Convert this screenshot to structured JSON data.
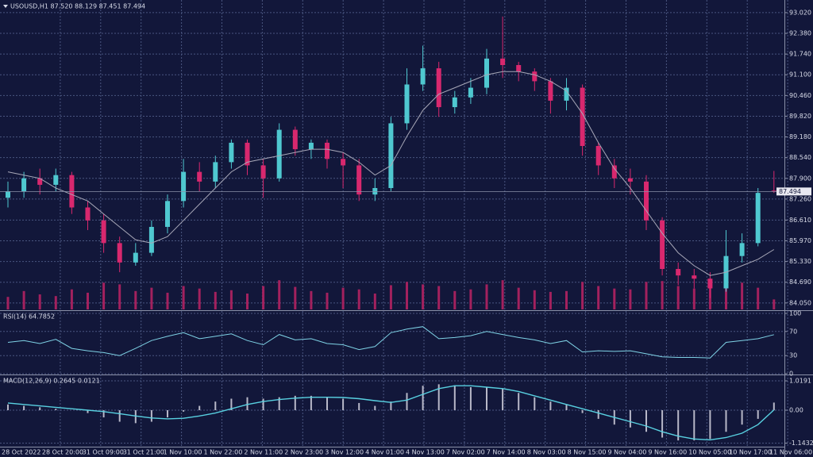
{
  "chart_data": [
    {
      "type": "candlestick",
      "title": "USOUSD,H1  87.520 88.129 87.451 87.494",
      "up_color": "#4fc8d0",
      "down_color": "#d8286e",
      "volume_color": "#a3215e",
      "ma_color": "#a8a8b8",
      "ylim": [
        83.85,
        93.41
      ],
      "yticks": [
        {
          "value": 93.02,
          "label": "93.020"
        },
        {
          "value": 92.38,
          "label": "92.380"
        },
        {
          "value": 91.74,
          "label": "91.740"
        },
        {
          "value": 91.1,
          "label": "91.100"
        },
        {
          "value": 90.46,
          "label": "90.460"
        },
        {
          "value": 89.82,
          "label": "89.820"
        },
        {
          "value": 89.18,
          "label": "89.180"
        },
        {
          "value": 88.54,
          "label": "88.540"
        },
        {
          "value": 87.9,
          "label": "87.900"
        },
        {
          "value": 87.26,
          "label": "87.260"
        },
        {
          "value": 86.61,
          "label": "86.610"
        },
        {
          "value": 85.97,
          "label": "85.970"
        },
        {
          "value": 85.33,
          "label": "85.330"
        },
        {
          "value": 84.69,
          "label": "84.690"
        },
        {
          "value": 84.05,
          "label": "84.050"
        }
      ],
      "grid": true,
      "open": [
        87.3,
        87.5,
        87.9,
        87.7,
        88.0,
        87.0,
        86.6,
        85.9,
        85.3,
        85.6,
        86.4,
        87.2,
        88.1,
        87.8,
        88.4,
        89.0,
        88.3,
        87.9,
        89.4,
        88.8,
        89.0,
        88.5,
        88.3,
        87.4,
        87.6,
        89.6,
        90.8,
        91.3,
        90.1,
        90.4,
        90.7,
        91.6,
        91.4,
        91.2,
        90.9,
        90.3,
        90.7,
        88.9,
        88.3,
        87.9,
        87.8,
        86.6,
        85.1,
        84.9,
        84.8,
        84.5,
        85.5,
        85.9,
        87.52
      ],
      "high": [
        87.8,
        88.1,
        88.2,
        88.2,
        88.1,
        87.2,
        86.8,
        86.1,
        85.9,
        86.6,
        87.4,
        88.5,
        88.4,
        88.6,
        89.1,
        89.1,
        88.5,
        89.6,
        89.5,
        89.1,
        89.1,
        88.7,
        88.5,
        87.9,
        89.8,
        91.3,
        92.0,
        91.5,
        90.6,
        91.0,
        91.9,
        92.9,
        91.5,
        91.3,
        91.0,
        91.0,
        90.8,
        89.0,
        88.5,
        88.2,
        88.0,
        86.7,
        85.3,
        85.1,
        85.0,
        86.3,
        86.2,
        87.6,
        88.129
      ],
      "low": [
        87.0,
        87.3,
        87.4,
        87.5,
        86.8,
        86.3,
        85.6,
        85.0,
        85.2,
        85.5,
        86.2,
        87.0,
        87.5,
        87.6,
        88.2,
        88.0,
        87.3,
        87.8,
        88.6,
        88.5,
        88.2,
        87.6,
        87.2,
        87.2,
        87.5,
        89.4,
        90.6,
        89.8,
        89.9,
        90.2,
        90.5,
        91.0,
        90.9,
        90.6,
        89.9,
        90.0,
        88.6,
        88.0,
        87.6,
        87.4,
        86.3,
        84.9,
        84.6,
        84.5,
        84.2,
        84.4,
        85.3,
        85.8,
        87.451
      ],
      "close": [
        87.5,
        87.9,
        87.7,
        88.0,
        87.0,
        86.6,
        85.9,
        85.3,
        85.6,
        86.4,
        87.2,
        88.1,
        87.8,
        88.4,
        89.0,
        88.3,
        87.9,
        89.4,
        88.8,
        89.0,
        88.5,
        88.3,
        87.4,
        87.6,
        89.6,
        90.8,
        91.3,
        90.1,
        90.4,
        90.7,
        91.6,
        91.4,
        91.2,
        90.9,
        90.3,
        90.7,
        88.9,
        88.3,
        87.9,
        87.8,
        86.6,
        85.1,
        84.9,
        84.8,
        84.5,
        85.5,
        85.9,
        87.45,
        87.494
      ],
      "ma": [
        88.1,
        88.0,
        87.9,
        87.6,
        87.4,
        87.2,
        86.8,
        86.4,
        86.0,
        85.9,
        86.1,
        86.6,
        87.1,
        87.6,
        88.1,
        88.4,
        88.5,
        88.6,
        88.7,
        88.8,
        88.8,
        88.7,
        88.4,
        88.0,
        88.3,
        89.2,
        90.0,
        90.5,
        90.7,
        90.9,
        91.1,
        91.2,
        91.2,
        91.1,
        90.9,
        90.6,
        89.9,
        89.0,
        88.2,
        87.6,
        86.9,
        86.2,
        85.6,
        85.2,
        84.9,
        85.0,
        85.2,
        85.4,
        85.7
      ],
      "volume": [
        1500,
        2200,
        1800,
        1600,
        2400,
        2000,
        3200,
        3000,
        2200,
        2600,
        2000,
        2800,
        2500,
        2100,
        2300,
        1900,
        2800,
        3500,
        2700,
        2200,
        2000,
        2600,
        2400,
        1900,
        2900,
        3300,
        3000,
        2800,
        2200,
        2400,
        3000,
        3500,
        2600,
        2300,
        2100,
        2200,
        3300,
        2800,
        2500,
        2400,
        3300,
        3400,
        2800,
        2500,
        3000,
        3800,
        3200,
        2600,
        1200
      ]
    },
    {
      "type": "line",
      "title": "RSI(14) 64.7852",
      "color": "#7fd3e6",
      "ylim": [
        0,
        100
      ],
      "yticks": [
        0,
        30,
        70,
        100
      ],
      "grid": true,
      "values": [
        52,
        55,
        50,
        57,
        42,
        38,
        35,
        30,
        42,
        55,
        62,
        68,
        58,
        62,
        66,
        55,
        48,
        65,
        56,
        58,
        50,
        48,
        40,
        45,
        68,
        74,
        78,
        58,
        60,
        63,
        70,
        65,
        60,
        56,
        50,
        55,
        36,
        38,
        37,
        38,
        33,
        28,
        27,
        27,
        26,
        52,
        55,
        58,
        64.7852
      ]
    },
    {
      "type": "macd",
      "title": "MACD(12,26,9) 0.2645 0.0121",
      "hist_color": "#b8b8c8",
      "signal_color": "#58d0e0",
      "ylim": [
        -1.267,
        1.185
      ],
      "yticks": [
        1.0191,
        {
          "value": 0,
          "label": "0.00"
        },
        -1.1432
      ],
      "grid": true,
      "macd": [
        0.2,
        0.15,
        0.1,
        0.05,
        0.0,
        -0.1,
        -0.25,
        -0.4,
        -0.45,
        -0.4,
        -0.25,
        -0.05,
        0.15,
        0.3,
        0.4,
        0.45,
        0.4,
        0.45,
        0.5,
        0.5,
        0.45,
        0.4,
        0.25,
        0.15,
        0.3,
        0.6,
        0.85,
        0.9,
        0.85,
        0.8,
        0.8,
        0.75,
        0.6,
        0.45,
        0.3,
        0.2,
        -0.1,
        -0.3,
        -0.5,
        -0.6,
        -0.75,
        -0.95,
        -1.05,
        -1.05,
        -1.0,
        -0.75,
        -0.5,
        -0.3,
        0.2645
      ],
      "signal": [
        0.25,
        0.2,
        0.15,
        0.1,
        0.05,
        0.0,
        -0.05,
        -0.12,
        -0.2,
        -0.27,
        -0.3,
        -0.28,
        -0.2,
        -0.1,
        0.05,
        0.2,
        0.3,
        0.37,
        0.42,
        0.45,
        0.45,
        0.44,
        0.4,
        0.33,
        0.27,
        0.35,
        0.55,
        0.75,
        0.85,
        0.85,
        0.8,
        0.75,
        0.65,
        0.5,
        0.35,
        0.2,
        0.05,
        -0.1,
        -0.25,
        -0.4,
        -0.55,
        -0.75,
        -0.9,
        -1.0,
        -1.03,
        -0.95,
        -0.8,
        -0.5,
        0.0121
      ],
      "time_labels": [
        "28 Oct 2022",
        "28 Oct 20:00",
        "31 Oct 09:00",
        "31 Oct 21:00",
        "1 Nov 10:00",
        "1 Nov 22:00",
        "2 Nov 11:00",
        "2 Nov 23:00",
        "3 Nov 12:00",
        "4 Nov 01:00",
        "4 Nov 13:00",
        "7 Nov 02:00",
        "7 Nov 14:00",
        "8 Nov 03:00",
        "8 Nov 15:00",
        "9 Nov 04:00",
        "9 Nov 16:00",
        "10 Nov 05:00",
        "10 Nov 17:00",
        "11 Nov 06:00"
      ]
    }
  ]
}
